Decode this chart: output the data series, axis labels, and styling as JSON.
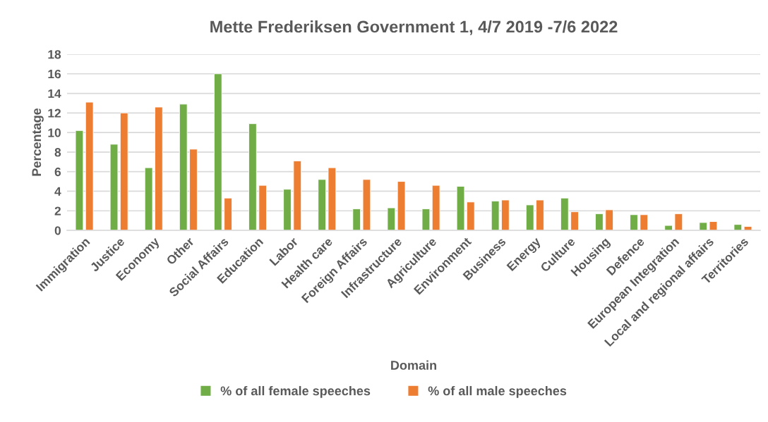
{
  "chart_data": {
    "type": "bar",
    "title": "Mette Frederiksen Government 1, 4/7 2019 -7/6 2022",
    "xlabel": "Domain",
    "ylabel": "Percentage",
    "categories": [
      "Immigration",
      "Justice",
      "Economy",
      "Other",
      "Social Affairs",
      "Education",
      "Labor",
      "Health care",
      "Foreign Affairs",
      "Infrastructure",
      "Agriculture",
      "Environment",
      "Business",
      "Energy",
      "Culture",
      "Housing",
      "Defence",
      "European Integration",
      "Local and regional affairs",
      "Territories"
    ],
    "series": [
      {
        "name": "% of all female speeches",
        "color": "#70ad47",
        "values": [
          10.2,
          8.8,
          6.4,
          12.9,
          16.0,
          10.9,
          4.2,
          5.2,
          2.2,
          2.3,
          2.2,
          4.5,
          3.0,
          2.6,
          3.3,
          1.7,
          1.6,
          0.5,
          0.8,
          0.6
        ]
      },
      {
        "name": "% of all male speeches",
        "color": "#ed7d31",
        "values": [
          13.1,
          12.0,
          12.6,
          8.3,
          3.3,
          4.6,
          7.1,
          6.4,
          5.2,
          5.0,
          4.6,
          2.9,
          3.1,
          3.1,
          1.9,
          2.1,
          1.6,
          1.7,
          0.9,
          0.4
        ]
      }
    ],
    "ylim": [
      0,
      18
    ],
    "yticks": [
      0,
      2,
      4,
      6,
      8,
      10,
      12,
      14,
      16,
      18
    ],
    "grid": "y",
    "legend": "bottom"
  }
}
